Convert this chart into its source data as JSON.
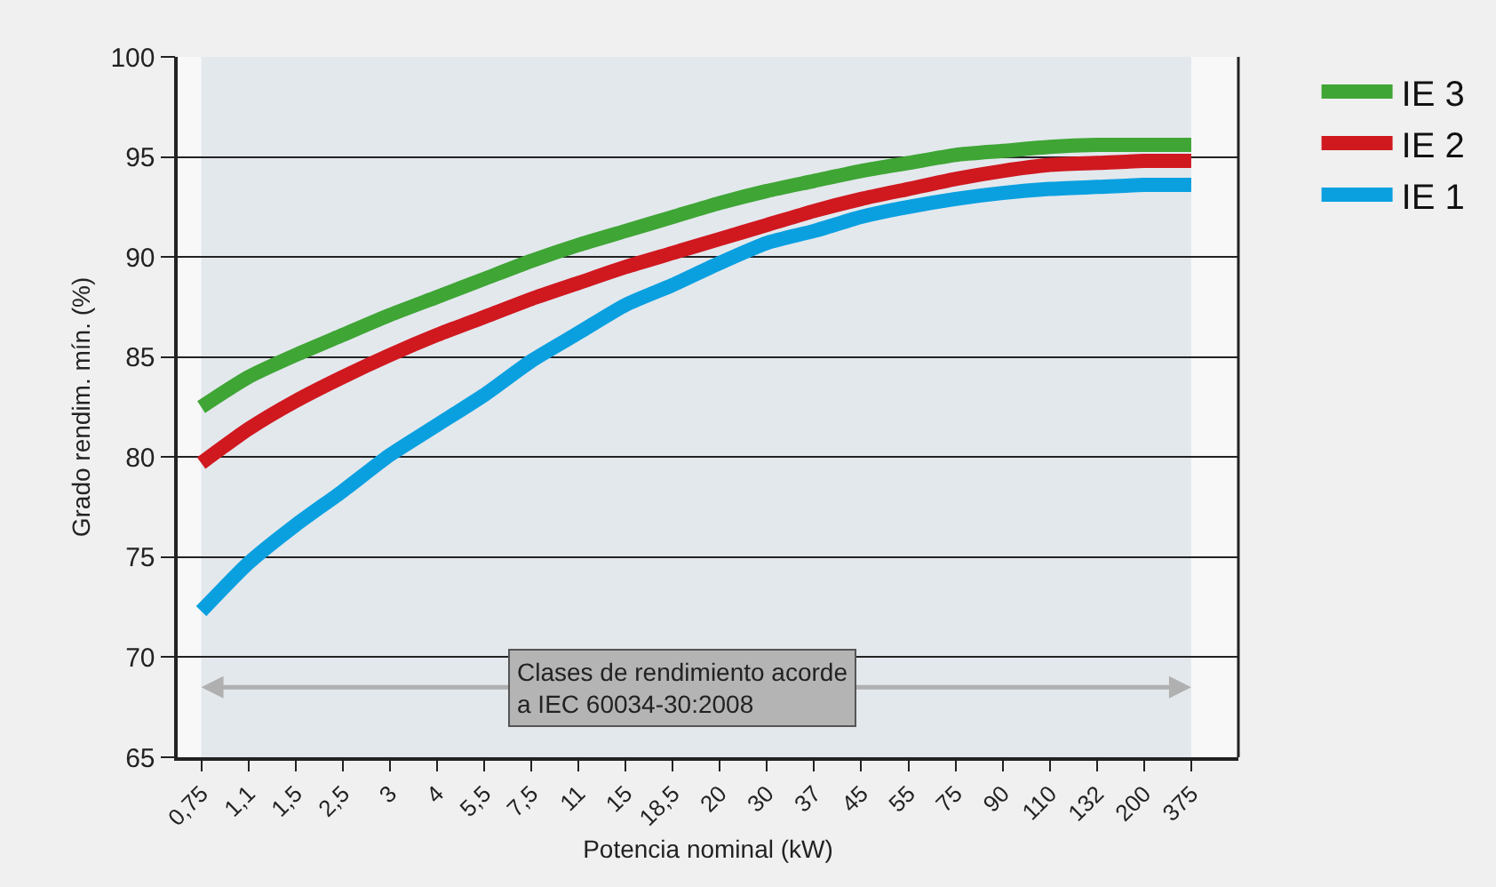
{
  "chart_data": {
    "type": "line",
    "xlabel": "Potencia nominal (kW)",
    "ylabel": "Grado rendim. mín. (%)",
    "categories": [
      "0,75",
      "1,1",
      "1,5",
      "2,5",
      "3",
      "4",
      "5,5",
      "7,5",
      "11",
      "15",
      "18,5",
      "20",
      "30",
      "37",
      "45",
      "55",
      "75",
      "90",
      "110",
      "132",
      "200",
      "375"
    ],
    "series": [
      {
        "name": "IE 3",
        "color": "#3fa535",
        "values": [
          82.5,
          84.0,
          85.1,
          86.1,
          87.1,
          88.0,
          88.9,
          89.8,
          90.6,
          91.3,
          92.0,
          92.7,
          93.3,
          93.8,
          94.3,
          94.7,
          95.1,
          95.3,
          95.5,
          95.6,
          95.6,
          95.6
        ]
      },
      {
        "name": "IE 2",
        "color": "#d0181f",
        "values": [
          79.7,
          81.4,
          82.8,
          84.0,
          85.1,
          86.1,
          87.0,
          87.9,
          88.7,
          89.5,
          90.2,
          90.9,
          91.6,
          92.3,
          92.9,
          93.4,
          93.9,
          94.3,
          94.6,
          94.7,
          94.8,
          94.8
        ]
      },
      {
        "name": "IE 1",
        "color": "#0aa0e0",
        "values": [
          72.3,
          74.7,
          76.6,
          78.3,
          80.1,
          81.6,
          83.1,
          84.8,
          86.2,
          87.6,
          88.6,
          89.7,
          90.7,
          91.3,
          92.0,
          92.5,
          92.9,
          93.2,
          93.4,
          93.5,
          93.6,
          93.6
        ]
      }
    ],
    "ylim": [
      65,
      100
    ],
    "yticks": [
      65,
      70,
      75,
      80,
      85,
      90,
      95,
      100
    ],
    "grid": "y",
    "legend": "top right",
    "marker": "none",
    "line_style": "solid",
    "bands": [
      {
        "axis": "x",
        "from": "0,75",
        "to": "375",
        "color": "#e3e8ed"
      }
    ],
    "annotations": [
      "Clases de rendimiento acorde\na IEC 60034-30:2008"
    ]
  }
}
